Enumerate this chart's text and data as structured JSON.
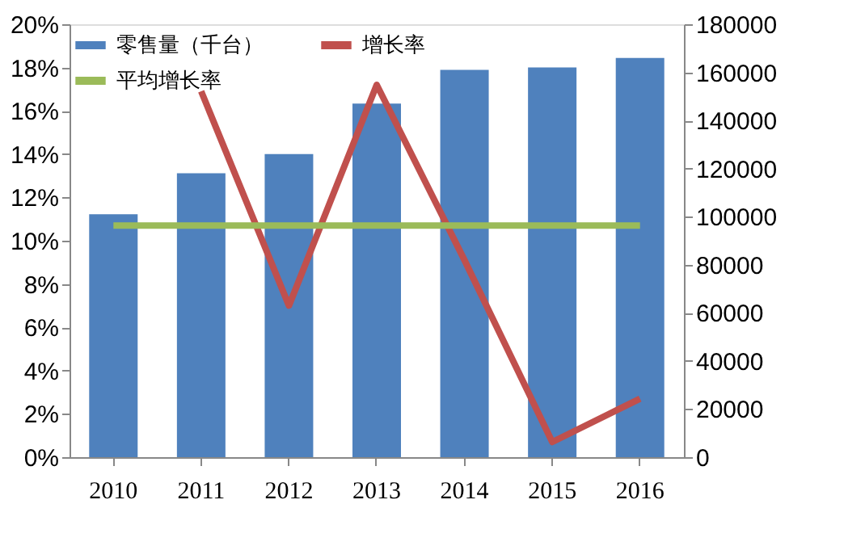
{
  "chart_data": {
    "type": "bar",
    "categories": [
      "2010",
      "2011",
      "2012",
      "2013",
      "2014",
      "2015",
      "2016"
    ],
    "series": [
      {
        "name": "零售量（千台）",
        "axis": "y2",
        "color": "#4f81bd",
        "values": [
          101000,
          118000,
          126000,
          147000,
          161000,
          162000,
          166000
        ]
      },
      {
        "name": "增长率",
        "type": "line",
        "axis": "y",
        "color": "#c0504d",
        "values": [
          null,
          16.9,
          7.0,
          17.2,
          9.1,
          0.7,
          2.7
        ]
      },
      {
        "name": "平均增长率",
        "type": "line",
        "axis": "y",
        "color": "#9bbb59",
        "values": [
          10.7,
          10.7,
          10.7,
          10.7,
          10.7,
          10.7,
          10.7
        ]
      }
    ],
    "ylim": [
      0,
      20
    ],
    "yticks": [
      {
        "value": 0,
        "label": "0%"
      },
      {
        "value": 2,
        "label": "2%"
      },
      {
        "value": 4,
        "label": "4%"
      },
      {
        "value": 6,
        "label": "6%"
      },
      {
        "value": 8,
        "label": "8%"
      },
      {
        "value": 10,
        "label": "10%"
      },
      {
        "value": 12,
        "label": "12%"
      },
      {
        "value": 14,
        "label": "14%"
      },
      {
        "value": 16,
        "label": "16%"
      },
      {
        "value": 18,
        "label": "18%"
      },
      {
        "value": 20,
        "label": "20%"
      }
    ],
    "y2lim": [
      0,
      180000
    ],
    "y2ticks": [
      0,
      20000,
      40000,
      60000,
      80000,
      100000,
      120000,
      140000,
      160000,
      180000
    ],
    "grid": false,
    "legend": "top left"
  }
}
